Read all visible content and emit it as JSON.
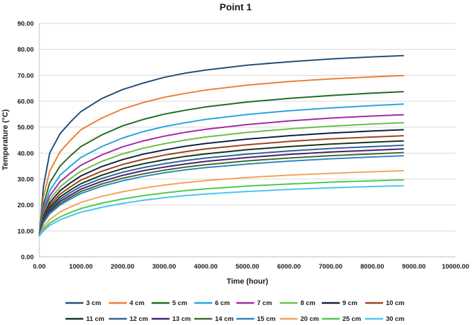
{
  "chart_data": {
    "type": "line",
    "title": "Point 1",
    "xlabel": "Time (hour)",
    "ylabel": "Temperature (°C)",
    "xlim": [
      0,
      10000
    ],
    "ylim": [
      0,
      90
    ],
    "x_ticks": [
      "0.00",
      "1000.00",
      "2000.00",
      "3000.00",
      "4000.00",
      "5000.00",
      "6000.00",
      "7000.00",
      "8000.00",
      "9000.00",
      "10000.00"
    ],
    "y_ticks": [
      "0.00",
      "10.00",
      "20.00",
      "30.00",
      "40.00",
      "50.00",
      "60.00",
      "70.00",
      "80.00",
      "90.00"
    ],
    "grid": "horizontal",
    "legend_position": "bottom",
    "x": [
      0,
      100,
      250,
      500,
      750,
      1000,
      1500,
      2000,
      2500,
      3000,
      3500,
      4000,
      5000,
      6000,
      7000,
      8000,
      8760
    ],
    "series": [
      {
        "name": "3 cm",
        "color": "#1f4e79",
        "values": [
          8,
          27,
          40,
          47.5,
          52,
          56,
          61,
          64.5,
          67,
          69.2,
          70.8,
          72,
          73.9,
          75.2,
          76.3,
          77.1,
          77.6
        ]
      },
      {
        "name": "4 cm",
        "color": "#ed7d31",
        "values": [
          8,
          23,
          33,
          40.5,
          45,
          49,
          53.5,
          57,
          59.5,
          61.5,
          63,
          64.3,
          66.2,
          67.6,
          68.6,
          69.4,
          69.9
        ]
      },
      {
        "name": "5 cm",
        "color": "#1e6b1e",
        "values": [
          8,
          20,
          28.5,
          35,
          39,
          42.5,
          47,
          50.5,
          53,
          55,
          56.5,
          57.8,
          59.7,
          61.1,
          62.2,
          63.1,
          63.7
        ]
      },
      {
        "name": "6 cm",
        "color": "#29a3e0",
        "values": [
          8,
          18.5,
          25.5,
          31.5,
          35,
          38.3,
          42.5,
          45.8,
          48.3,
          50.2,
          51.7,
          53,
          54.9,
          56.3,
          57.4,
          58.3,
          58.9
        ]
      },
      {
        "name": "7 cm",
        "color": "#a626a4",
        "values": [
          8,
          17.5,
          23.5,
          29,
          32.3,
          35.3,
          39.3,
          42.4,
          44.7,
          46.5,
          48,
          49.2,
          51,
          52.4,
          53.5,
          54.3,
          54.8
        ]
      },
      {
        "name": "8 cm",
        "color": "#6dbe45",
        "values": [
          8,
          16.5,
          22,
          27,
          30.2,
          33,
          36.8,
          39.7,
          41.9,
          43.6,
          45,
          46.2,
          48,
          49.3,
          50.4,
          51.2,
          51.7
        ]
      },
      {
        "name": "9 cm",
        "color": "#0d1f3c",
        "values": [
          8,
          15.8,
          20.8,
          25.5,
          28.5,
          31.2,
          34.8,
          37.5,
          39.6,
          41.2,
          42.6,
          43.7,
          45.4,
          46.7,
          47.7,
          48.5,
          49
        ]
      },
      {
        "name": "10 cm",
        "color": "#a0401a",
        "values": [
          8,
          15.2,
          19.8,
          24.2,
          27,
          29.6,
          33,
          35.6,
          37.6,
          39.2,
          40.5,
          41.6,
          43.2,
          44.5,
          45.5,
          46.2,
          46.7
        ]
      },
      {
        "name": "11 cm",
        "color": "#17331b",
        "values": [
          8,
          14.7,
          19,
          23.1,
          25.8,
          28.2,
          31.5,
          34,
          35.9,
          37.4,
          38.7,
          39.7,
          41.3,
          42.5,
          43.5,
          44.2,
          44.7
        ]
      },
      {
        "name": "12 cm",
        "color": "#2a6496",
        "values": [
          8,
          14.2,
          18.3,
          22.2,
          24.8,
          27.1,
          30.2,
          32.6,
          34.4,
          35.9,
          37.1,
          38.1,
          39.6,
          40.8,
          41.8,
          42.5,
          43
        ]
      },
      {
        "name": "13 cm",
        "color": "#4b1d6b",
        "values": [
          8,
          13.8,
          17.7,
          21.4,
          23.8,
          26.1,
          29.1,
          31.4,
          33.2,
          34.6,
          35.8,
          36.8,
          38.3,
          39.5,
          40.4,
          41.1,
          41.6
        ]
      },
      {
        "name": "14 cm",
        "color": "#3f6b2a",
        "values": [
          8,
          13.4,
          17.1,
          20.6,
          23,
          25.2,
          28.1,
          30.3,
          32,
          33.4,
          34.6,
          35.5,
          37,
          38.1,
          39,
          39.7,
          40.2
        ]
      },
      {
        "name": "15 cm",
        "color": "#2e86c1",
        "values": [
          8,
          13,
          16.6,
          20,
          22.3,
          24.4,
          27.2,
          29.3,
          31,
          32.4,
          33.5,
          34.4,
          35.8,
          36.9,
          37.8,
          38.5,
          39
        ]
      },
      {
        "name": "20 cm",
        "color": "#f4a259",
        "values": [
          8,
          11.5,
          14.4,
          17.3,
          19.2,
          21,
          23.3,
          25.1,
          26.5,
          27.7,
          28.6,
          29.4,
          30.6,
          31.5,
          32.2,
          32.8,
          33.2
        ]
      },
      {
        "name": "25 cm",
        "color": "#4cc94c",
        "values": [
          8,
          10.6,
          13,
          15.4,
          17.1,
          18.6,
          20.7,
          22.3,
          23.6,
          24.6,
          25.5,
          26.2,
          27.3,
          28.1,
          28.8,
          29.3,
          29.7
        ]
      },
      {
        "name": "30 cm",
        "color": "#48c6f0",
        "values": [
          8,
          10,
          12.1,
          14.3,
          15.8,
          17.2,
          19.1,
          20.6,
          21.8,
          22.8,
          23.6,
          24.2,
          25.2,
          26,
          26.6,
          27.1,
          27.4
        ]
      }
    ]
  }
}
